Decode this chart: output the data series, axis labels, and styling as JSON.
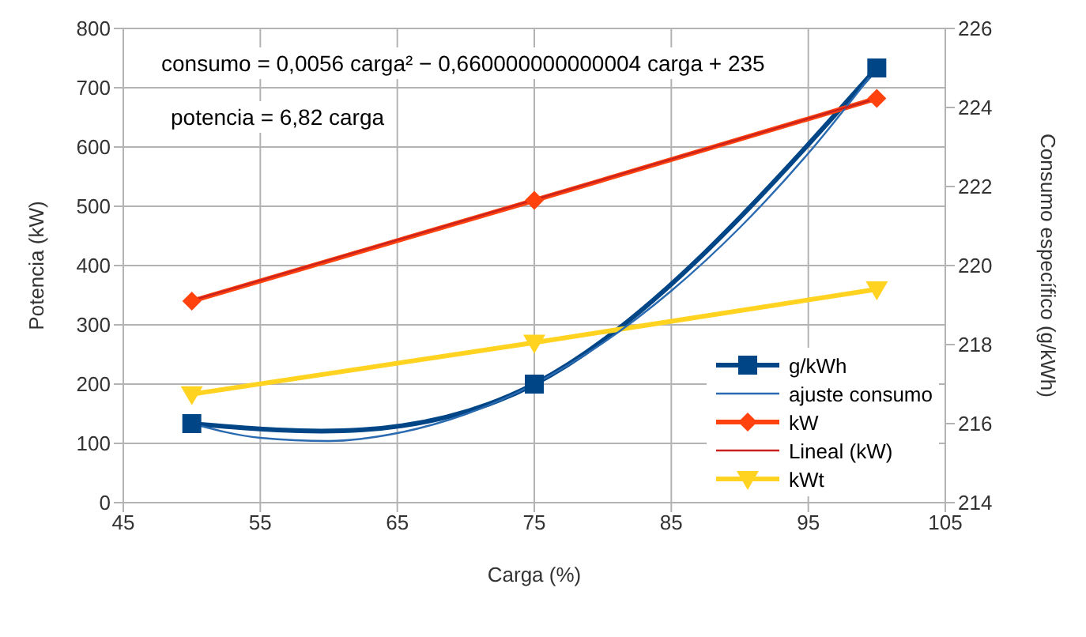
{
  "chart_data": {
    "type": "line",
    "xlabel": "Carga (%)",
    "ylabel": "Potencia (kW)",
    "y2label": "Consumo específico (g/kWh)",
    "xlim": [
      45,
      105
    ],
    "xticks": [
      45,
      55,
      65,
      75,
      85,
      95,
      105
    ],
    "ylim": [
      0,
      800
    ],
    "yticks": [
      0,
      100,
      200,
      300,
      400,
      500,
      600,
      700,
      800
    ],
    "y2lim": [
      214,
      226
    ],
    "y2ticks": [
      214,
      216,
      218,
      220,
      222,
      224,
      226
    ],
    "grid": true,
    "legend": "right",
    "annotations": [
      "consumo = 0,0056 carga² − 0,660000000000004 carga + 235",
      "potencia = 6,82 carga"
    ],
    "series": [
      {
        "name": "g/kWh",
        "color": "#004586",
        "axis": "y2",
        "marker": "square",
        "x": [
          50,
          75,
          100
        ],
        "values": [
          216,
          217,
          225
        ]
      },
      {
        "name": "ajuste consumo",
        "color": "#2a6ab0",
        "axis": "y2",
        "marker": "none",
        "x": [
          50,
          55,
          60,
          65,
          70,
          75,
          80,
          85,
          90,
          95,
          100
        ],
        "values": [
          216,
          215.64,
          215.56,
          215.76,
          216.24,
          217,
          218.04,
          219.36,
          220.96,
          222.84,
          225
        ]
      },
      {
        "name": "kW",
        "color": "#ff420e",
        "marker": "diamond",
        "x": [
          50,
          75,
          100
        ],
        "values": [
          340,
          510,
          682
        ]
      },
      {
        "name": "Lineal (kW)",
        "color": "#c9211e",
        "marker": "none",
        "x": [
          50,
          75,
          100
        ],
        "values": [
          341,
          511,
          682
        ]
      },
      {
        "name": "kWt",
        "color": "#ffd320",
        "marker": "triangle",
        "x": [
          50,
          75,
          100
        ],
        "values": [
          183,
          270,
          360
        ]
      }
    ]
  }
}
